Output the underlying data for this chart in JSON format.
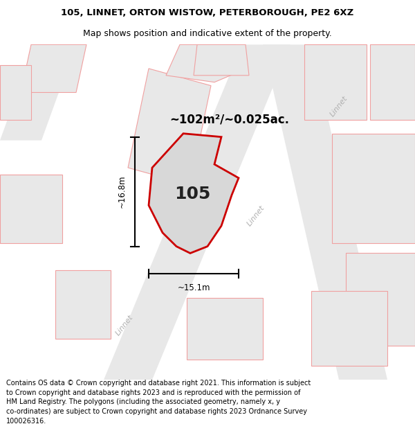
{
  "title_line1": "105, LINNET, ORTON WISTOW, PETERBOROUGH, PE2 6XZ",
  "title_line2": "Map shows position and indicative extent of the property.",
  "footer_text": "Contains OS data © Crown copyright and database right 2021. This information is subject\nto Crown copyright and database rights 2023 and is reproduced with the permission of\nHM Land Registry. The polygons (including the associated geometry, namely x, y\nco-ordinates) are subject to Crown copyright and database rights 2023 Ordnance Survey\n100026316.",
  "map_bg": "#ffffff",
  "road_fill": "#e8e8e8",
  "surr_fill": "#e8e8e8",
  "surr_edge": "#f0a0a0",
  "prop_fill": "#d8d8d8",
  "prop_edge": "#cc0000",
  "road_label_color": "#b0b0b0",
  "dim_color": "#111111",
  "property_label": "105",
  "area_label": "~102m²/~0.025ac.",
  "width_label": "~15.1m",
  "height_label": "~16.8m",
  "road_label": "Linnet",
  "title_fs": 9.5,
  "footer_fs": 7.0,
  "prop_label_fs": 18,
  "area_label_fs": 12,
  "dim_fs": 8.5,
  "road_fs": 8.0
}
